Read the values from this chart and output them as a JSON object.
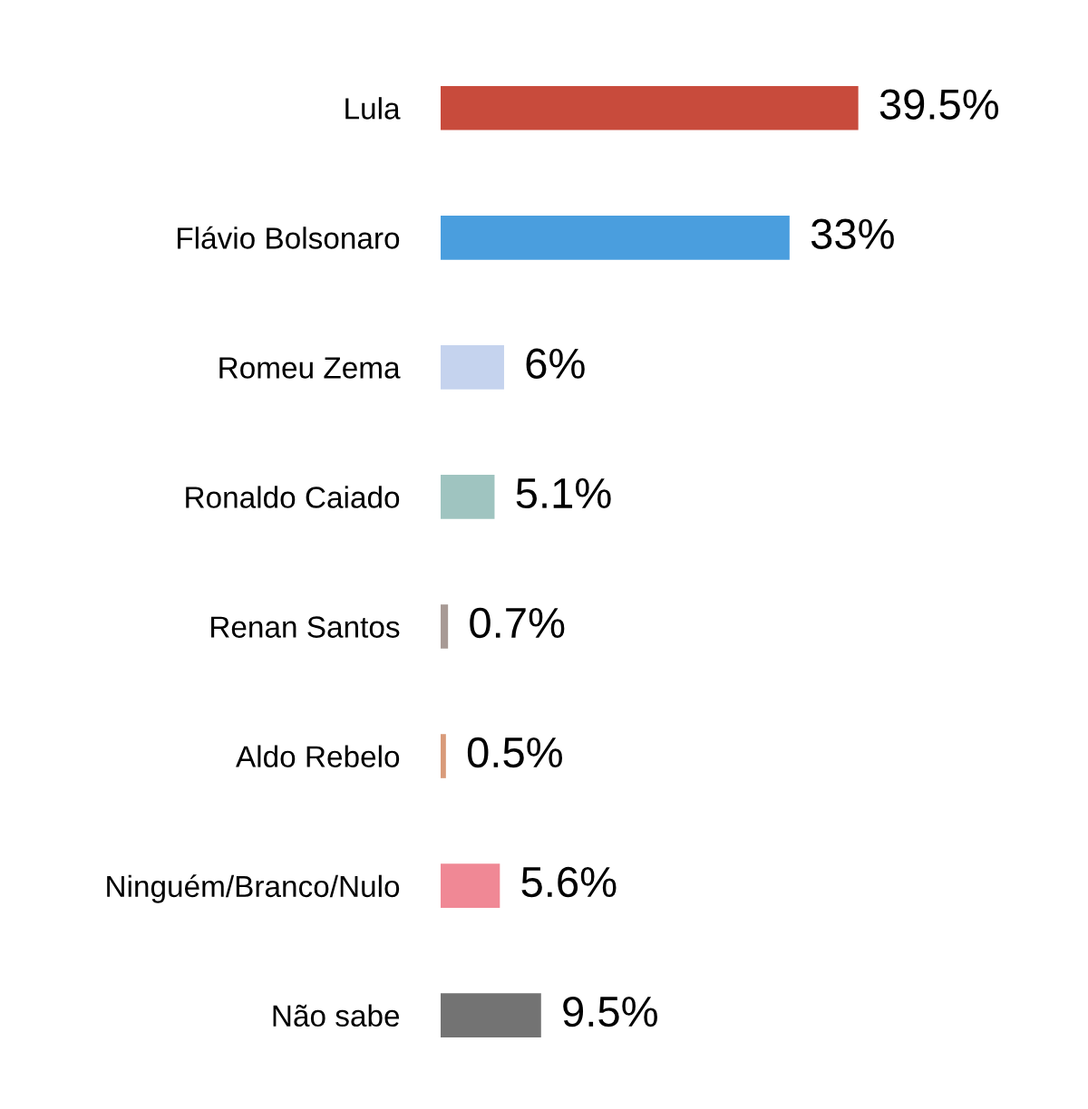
{
  "chart_data": {
    "type": "bar",
    "orientation": "horizontal",
    "grid": false,
    "legend": false,
    "value_labels": [
      "39.5%",
      "33%",
      "6%",
      "5.1%",
      "0.7%",
      "0.5%",
      "5.6%",
      "9.5%"
    ],
    "categories": [
      "Lula",
      "Flávio Bolsonaro",
      "Romeu Zema",
      "Ronaldo Caiado",
      "Renan Santos",
      "Aldo Rebelo",
      "Ninguém/Branco/Nulo",
      "Não sabe"
    ],
    "values": [
      39.5,
      33,
      6,
      5.1,
      0.7,
      0.5,
      5.6,
      9.5
    ],
    "colors": [
      "#c84b3c",
      "#4a9ede",
      "#c5d3ee",
      "#9fc4c0",
      "#a89a95",
      "#d99b7a",
      "#f08895",
      "#737373"
    ]
  }
}
